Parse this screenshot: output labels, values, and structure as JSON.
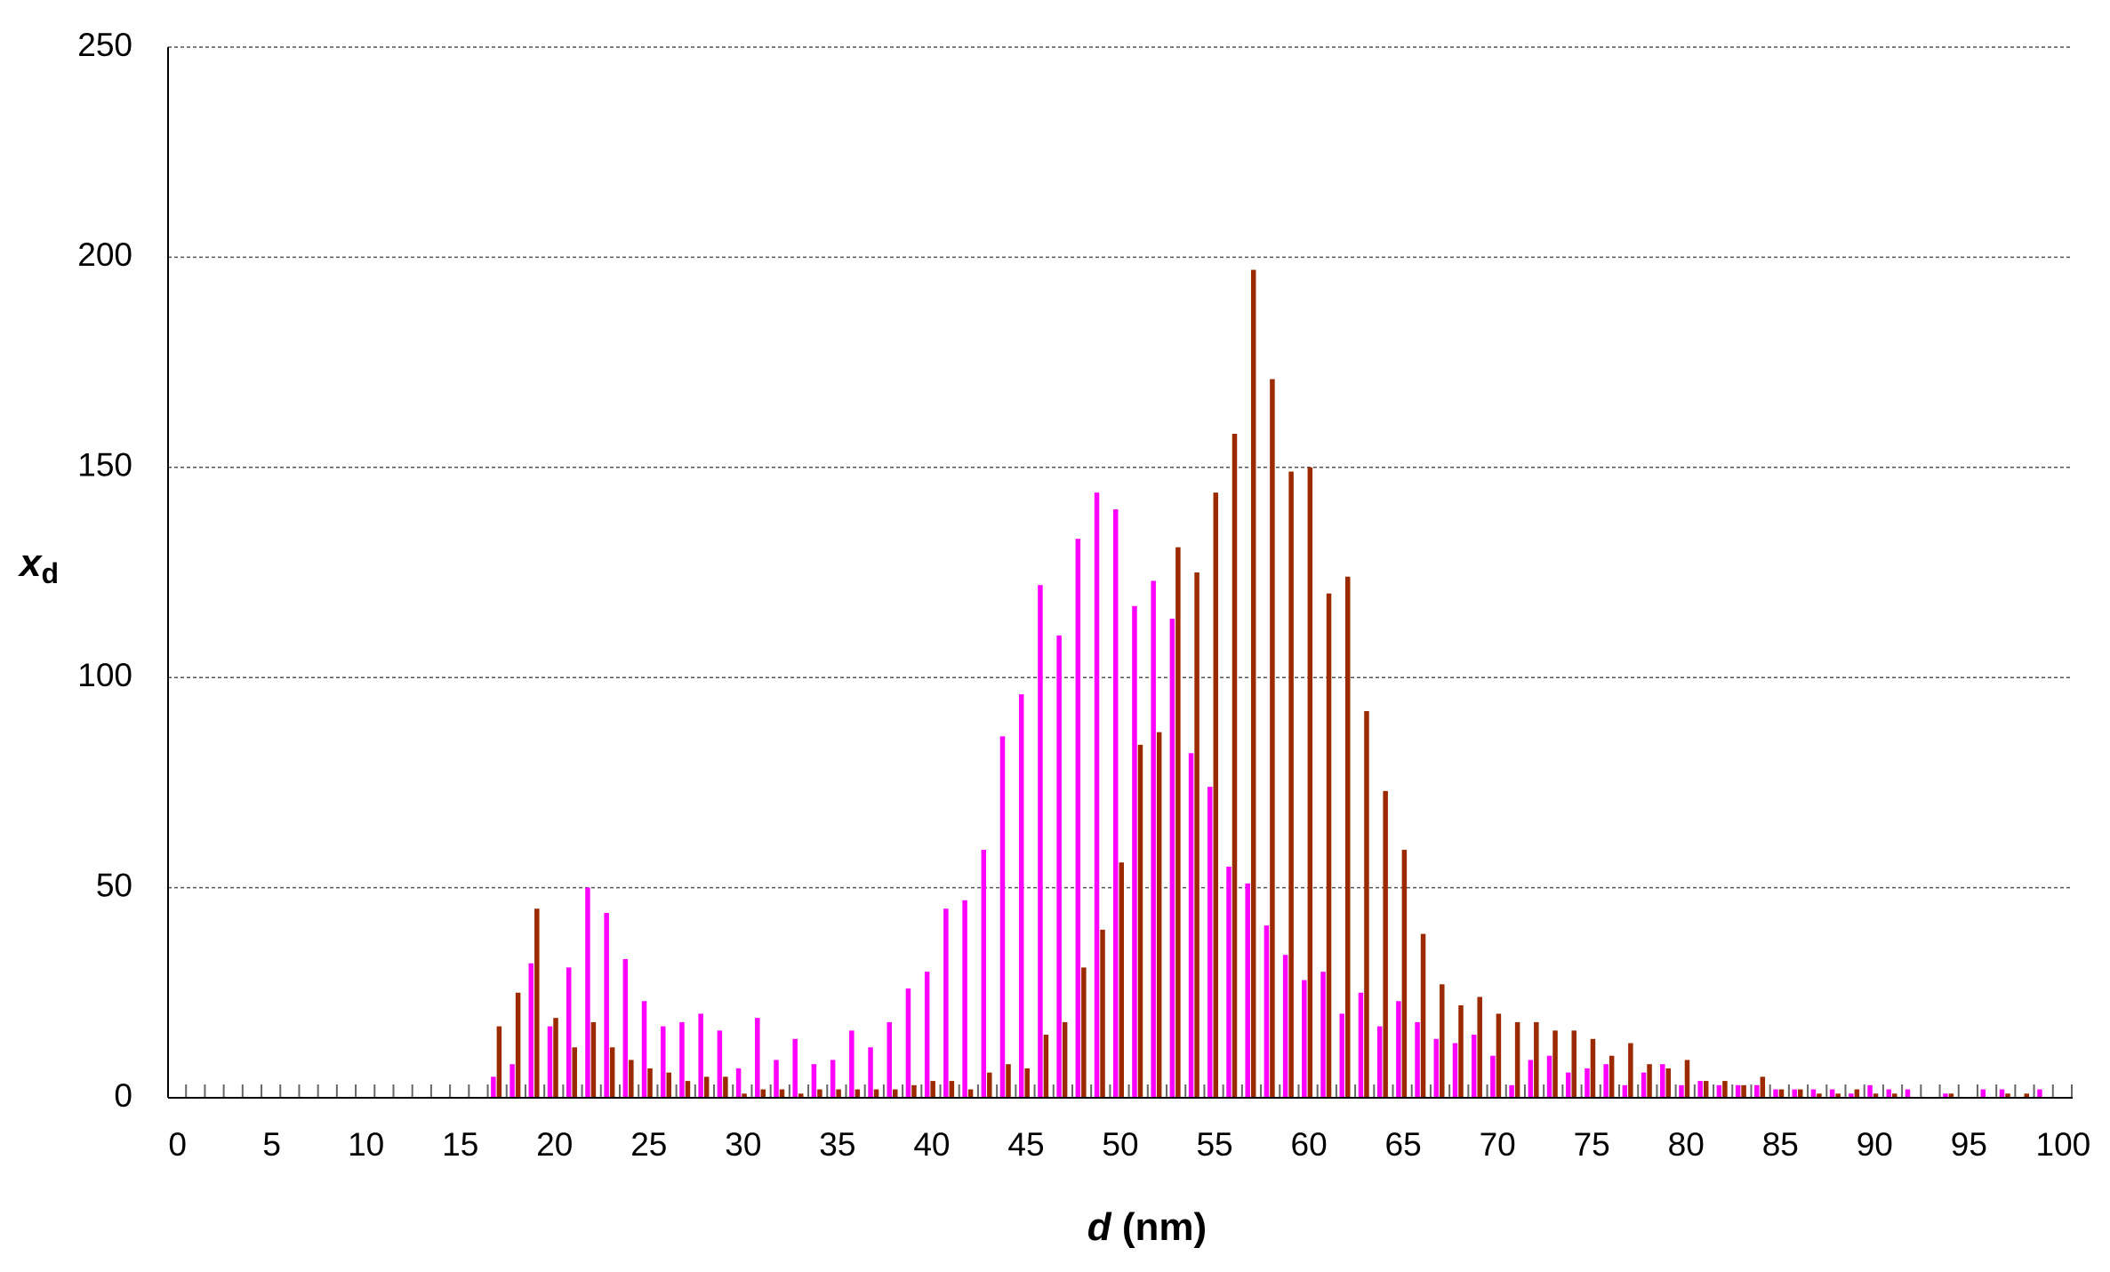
{
  "chart_data": {
    "type": "bar",
    "xlabel": "d",
    "xlabel_unit": "(nm)",
    "ylabel": "x",
    "ylabel_subscript": "d",
    "categories": [
      0,
      null,
      null,
      null,
      null,
      5,
      null,
      null,
      null,
      null,
      10,
      null,
      null,
      null,
      null,
      15,
      null,
      null,
      null,
      null,
      20,
      null,
      null,
      null,
      null,
      25,
      null,
      null,
      null,
      null,
      30,
      null,
      null,
      null,
      null,
      35,
      null,
      null,
      null,
      null,
      40,
      null,
      null,
      null,
      null,
      45,
      null,
      null,
      null,
      null,
      50,
      null,
      null,
      null,
      null,
      55,
      null,
      null,
      null,
      null,
      60,
      null,
      null,
      null,
      null,
      65,
      null,
      null,
      null,
      null,
      70,
      null,
      null,
      null,
      null,
      75,
      null,
      null,
      null,
      null,
      80,
      null,
      null,
      null,
      null,
      85,
      null,
      null,
      null,
      null,
      90,
      null,
      null,
      null,
      null,
      95,
      null,
      null,
      null,
      null,
      100
    ],
    "series": [
      {
        "color": "#ff00ff",
        "values": [
          0,
          0,
          0,
          0,
          0,
          0,
          0,
          0,
          0,
          0,
          0,
          0,
          0,
          0,
          0,
          0,
          0,
          5,
          8,
          32,
          17,
          31,
          50,
          44,
          33,
          23,
          17,
          18,
          20,
          16,
          7,
          19,
          9,
          14,
          8,
          9,
          16,
          12,
          18,
          26,
          30,
          45,
          47,
          59,
          86,
          96,
          122,
          110,
          133,
          144,
          140,
          117,
          123,
          114,
          82,
          74,
          55,
          51,
          41,
          34,
          28,
          30,
          20,
          25,
          17,
          23,
          18,
          14,
          13,
          15,
          10,
          3,
          9,
          10,
          6,
          7,
          8,
          3,
          6,
          8,
          3,
          4,
          3,
          3,
          3,
          2,
          2,
          2,
          2,
          1,
          3,
          2,
          2,
          0,
          1,
          0,
          2,
          2,
          0,
          2,
          0
        ]
      },
      {
        "color": "#9c2a00",
        "values": [
          0,
          0,
          0,
          0,
          0,
          0,
          0,
          0,
          0,
          0,
          0,
          0,
          0,
          0,
          0,
          0,
          0,
          17,
          25,
          45,
          19,
          12,
          18,
          12,
          9,
          7,
          6,
          4,
          5,
          5,
          1,
          2,
          2,
          1,
          2,
          2,
          2,
          2,
          2,
          3,
          4,
          4,
          2,
          6,
          8,
          7,
          15,
          18,
          31,
          40,
          56,
          84,
          87,
          131,
          125,
          144,
          158,
          197,
          171,
          149,
          150,
          120,
          124,
          92,
          73,
          59,
          39,
          27,
          22,
          24,
          20,
          18,
          18,
          16,
          16,
          14,
          10,
          13,
          8,
          7,
          9,
          4,
          4,
          3,
          5,
          2,
          2,
          1,
          1,
          2,
          1,
          1,
          0,
          0,
          1,
          0,
          0,
          1,
          1,
          0,
          0
        ]
      }
    ],
    "ylim": [
      0,
      250
    ],
    "yticks": [
      0,
      50,
      100,
      150,
      200,
      250
    ],
    "grid": true
  }
}
